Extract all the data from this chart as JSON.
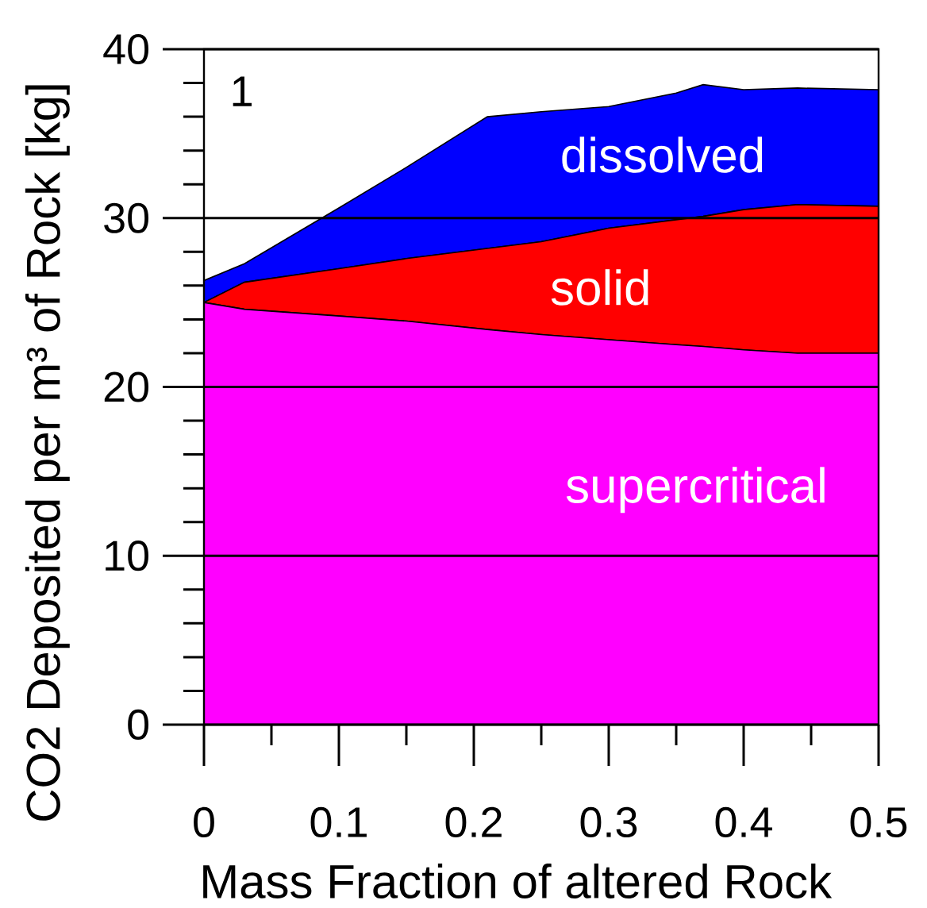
{
  "chart_data": {
    "type": "area",
    "stacked": true,
    "xlabel": "Mass Fraction of altered Rock",
    "ylabel": "CO2 Deposited per m³ of Rock [kg]",
    "annotations": [
      "1"
    ],
    "x": [
      0,
      0.03,
      0.1,
      0.15,
      0.21,
      0.25,
      0.3,
      0.35,
      0.37,
      0.4,
      0.44,
      0.5
    ],
    "series": [
      {
        "name": "supercritical",
        "color": "#ff00ff",
        "values": [
          25.0,
          24.6,
          24.2,
          23.9,
          23.4,
          23.1,
          22.8,
          22.5,
          22.4,
          22.2,
          22.0,
          22.0
        ]
      },
      {
        "name": "solid",
        "color": "#ff0000",
        "values": [
          0.0,
          1.6,
          2.8,
          3.7,
          4.8,
          5.5,
          6.6,
          7.4,
          7.7,
          8.3,
          8.8,
          8.7
        ]
      },
      {
        "name": "dissolved",
        "color": "#0000ff",
        "values": [
          1.3,
          1.1,
          3.6,
          5.4,
          7.8,
          7.7,
          7.2,
          7.5,
          7.8,
          7.1,
          6.9,
          6.9
        ]
      }
    ],
    "xlim": [
      0,
      0.5
    ],
    "xticks": [
      0,
      0.1,
      0.2,
      0.3,
      0.4,
      0.5
    ],
    "ylim": [
      0,
      40
    ],
    "yticks": [
      0,
      10,
      20,
      30,
      40
    ],
    "grid": "y"
  }
}
